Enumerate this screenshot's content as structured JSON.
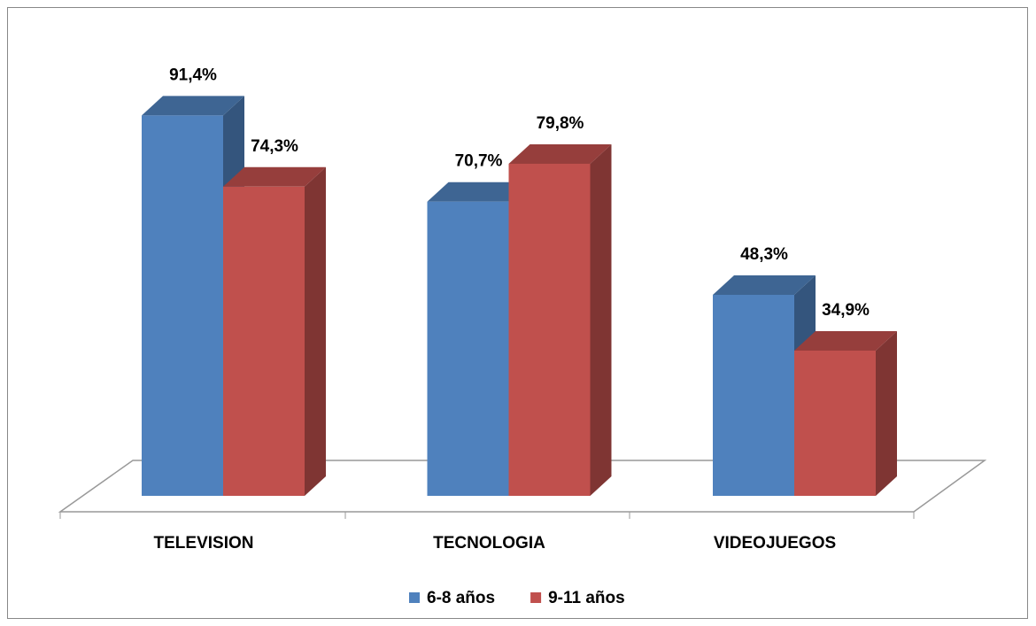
{
  "chart_data": {
    "type": "bar3d",
    "categories": [
      "TELEVISION",
      "TECNOLOGIA",
      "VIDEOJUEGOS"
    ],
    "series": [
      {
        "name": "6-8 años",
        "color": "#4f81bd",
        "values": [
          91.4,
          70.7,
          48.3
        ],
        "value_labels": [
          "91,4%",
          "70,7%",
          "48,3%"
        ]
      },
      {
        "name": "9-11 años",
        "color": "#c0504d",
        "values": [
          74.3,
          79.8,
          34.9
        ],
        "value_labels": [
          "74,3%",
          "79,8%",
          "34,9%"
        ]
      }
    ],
    "legend": "bottom"
  }
}
